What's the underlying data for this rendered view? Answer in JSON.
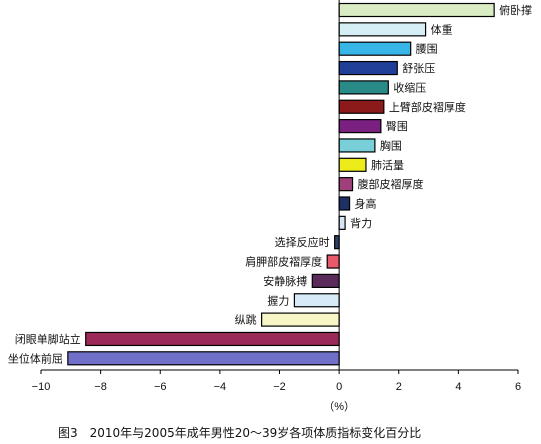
{
  "chart_data": {
    "type": "bar",
    "orientation": "horizontal",
    "caption": "图3　2010年与2005年成年男性20～39岁各项体质指标变化百分比",
    "xlabel": "（%）",
    "xlim": [
      -10,
      6
    ],
    "xticks": [
      -10,
      -8,
      -6,
      -4,
      -2,
      0,
      2,
      4,
      6
    ],
    "grid": false,
    "legend": "none",
    "categories": [
      "俯卧撑",
      "体重",
      "腰围",
      "舒张压",
      "收缩压",
      "上臂部皮褶厚度",
      "臀围",
      "胸围",
      "肺活量",
      "腹部皮褶厚度",
      "身高",
      "背力",
      "选择反应时",
      "肩胛部皮褶厚度",
      "安静脉搏",
      "握力",
      "纵跳",
      "闭眼单脚站立",
      "坐位体前屈"
    ],
    "values": [
      5.2,
      2.9,
      2.4,
      1.95,
      1.65,
      1.5,
      1.4,
      1.2,
      0.9,
      0.45,
      0.35,
      0.2,
      -0.15,
      -0.4,
      -0.9,
      -1.5,
      -2.6,
      -8.5,
      -9.1
    ],
    "colors": [
      "#d9ecc4",
      "#d6eef5",
      "#38b6e8",
      "#1f3f99",
      "#2a8a88",
      "#8c1a1a",
      "#7a2080",
      "#79cfd8",
      "#ecec1a",
      "#a0407a",
      "#1f3066",
      "#d6e6f5",
      "#2f3f66",
      "#e85a6a",
      "#5a2a5a",
      "#d6eaf8",
      "#f8f6c6",
      "#9c2a58",
      "#7070c8"
    ]
  }
}
